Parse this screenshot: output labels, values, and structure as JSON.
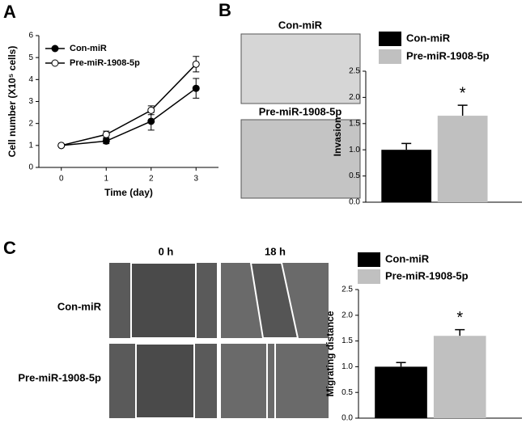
{
  "panels": [
    "A",
    "B",
    "C"
  ],
  "images": {
    "invasion_labels": [
      "Con-miR",
      "Pre-miR-1908-5p"
    ],
    "migration_columns": [
      "0 h",
      "18 h"
    ],
    "migration_rows": [
      "Con-miR",
      "Pre-miR-1908-5p"
    ]
  },
  "chart_data": [
    {
      "type": "line",
      "x_label": "Time (day)",
      "y_label": "Cell number (X10⁵ cells)",
      "x": [
        0,
        1,
        2,
        3
      ],
      "series": [
        {
          "name": "Con-miR",
          "color": "#000000",
          "values": [
            1,
            1.2,
            2.1,
            3.6
          ],
          "errors": [
            0.05,
            0.12,
            0.4,
            0.45
          ]
        },
        {
          "name": "Pre-miR-1908-5p",
          "color": "#ffffff",
          "values": [
            1,
            1.5,
            2.6,
            4.7
          ],
          "errors": [
            0.05,
            0.15,
            0.2,
            0.35
          ]
        }
      ],
      "xlim": [
        -0.5,
        3.5
      ],
      "xticks": [
        0,
        1,
        2,
        3
      ],
      "ylim": [
        0,
        6
      ],
      "yticks": [
        0,
        1,
        2,
        3,
        4,
        5,
        6
      ]
    },
    {
      "type": "bar",
      "y_label": "Invasion",
      "annotation": "*",
      "series": [
        {
          "name": "Con-miR",
          "color": "#000000",
          "values": [
            1.0
          ],
          "errors": [
            0.12
          ]
        },
        {
          "name": "Pre-miR-1908-5p",
          "color": "#c0c0c0",
          "values": [
            1.65
          ],
          "errors": [
            0.2
          ]
        }
      ],
      "ylim": [
        0,
        2.5
      ],
      "yticks": [
        {
          "value": 0,
          "label": "0.0"
        },
        {
          "value": 0.5,
          "label": "0.5"
        },
        {
          "value": 1,
          "label": "1.0"
        },
        {
          "value": 1.5,
          "label": "1.5"
        },
        {
          "value": 2,
          "label": "2.0"
        },
        {
          "value": 2.5,
          "label": "2.5"
        }
      ]
    },
    {
      "type": "bar",
      "y_label": "Migrating distance",
      "annotation": "*",
      "series": [
        {
          "name": "Con-miR",
          "color": "#000000",
          "values": [
            1.0
          ],
          "errors": [
            0.08
          ]
        },
        {
          "name": "Pre-miR-1908-5p",
          "color": "#c0c0c0",
          "values": [
            1.6
          ],
          "errors": [
            0.12
          ]
        }
      ],
      "ylim": [
        0,
        2.5
      ],
      "yticks": [
        {
          "value": 0,
          "label": "0.0"
        },
        {
          "value": 0.5,
          "label": "0.5"
        },
        {
          "value": 1,
          "label": "1.0"
        },
        {
          "value": 1.5,
          "label": "1.5"
        },
        {
          "value": 2,
          "label": "2.0"
        },
        {
          "value": 2.5,
          "label": "2.5"
        }
      ]
    }
  ]
}
